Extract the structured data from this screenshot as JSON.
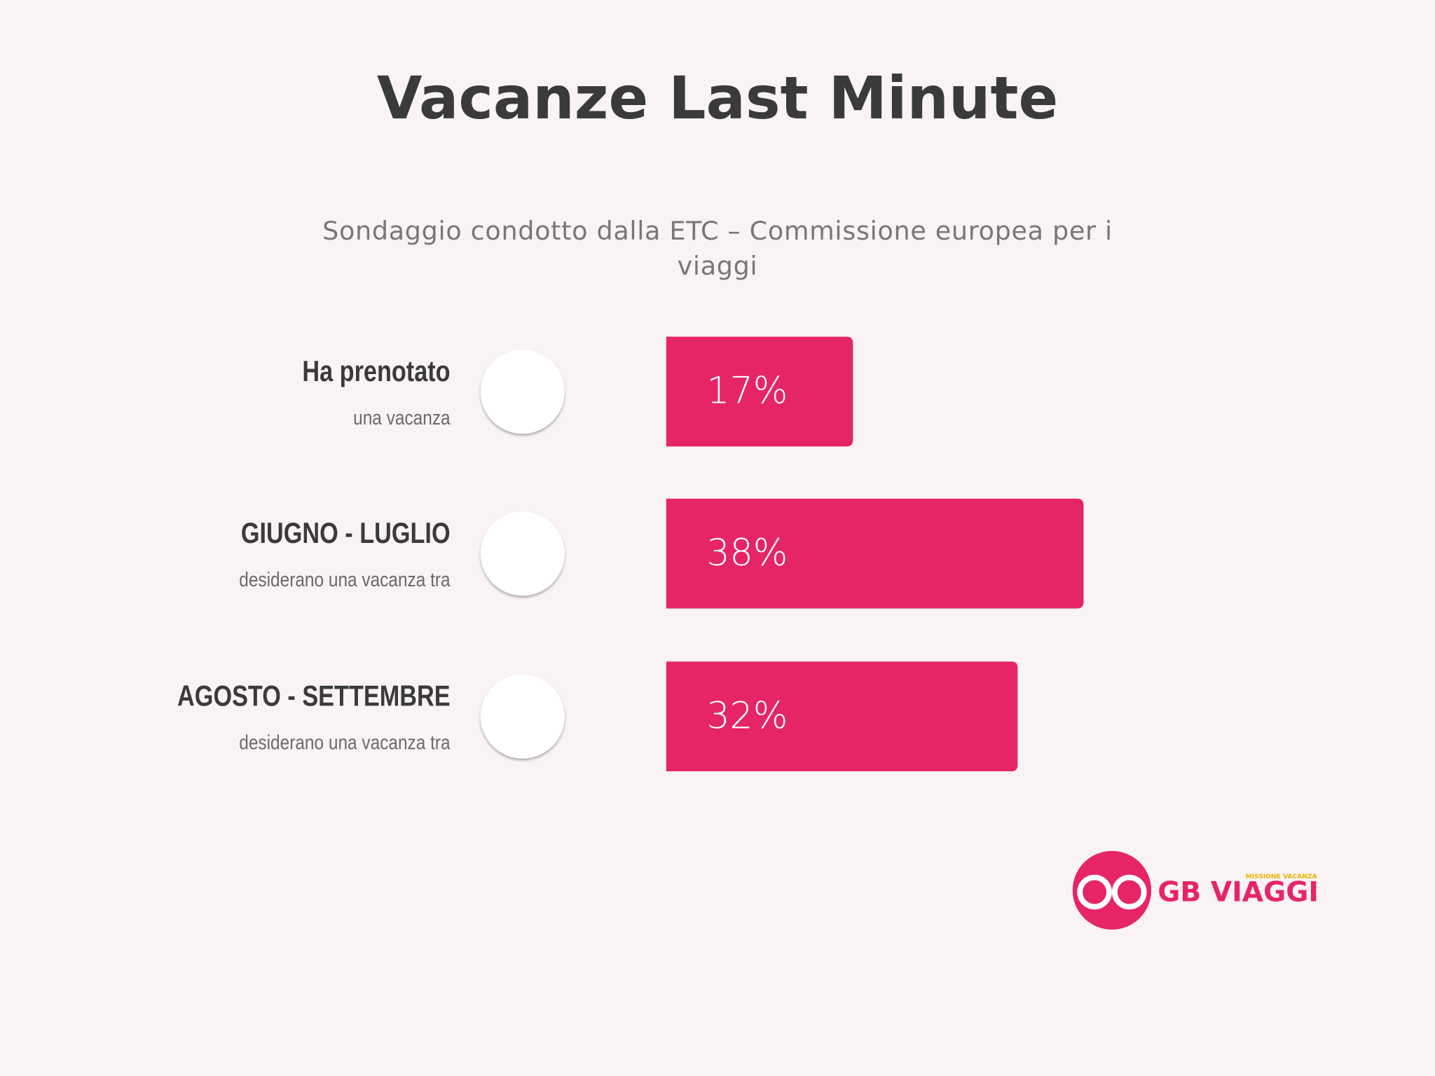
{
  "chart_data": {
    "type": "bar",
    "orientation": "horizontal",
    "title": "Vacanze Last Minute",
    "subtitle": "Sondaggio condotto dalla ETC – Commissione europea per i viaggi",
    "categories": [
      "Ha prenotato",
      "GIUGNO - LUGLIO",
      "AGOSTO - SETTEMBRE"
    ],
    "category_notes": [
      "una vacanza",
      "desiderano una vacanza tra",
      "desiderano una vacanza tra"
    ],
    "values": [
      17,
      38,
      32
    ],
    "value_labels": [
      "17%",
      "38%",
      "32%"
    ],
    "color": "#e62565"
  },
  "logo": {
    "name": "GB VIAGGI",
    "tagline": "MISSIONE VACANZA"
  }
}
